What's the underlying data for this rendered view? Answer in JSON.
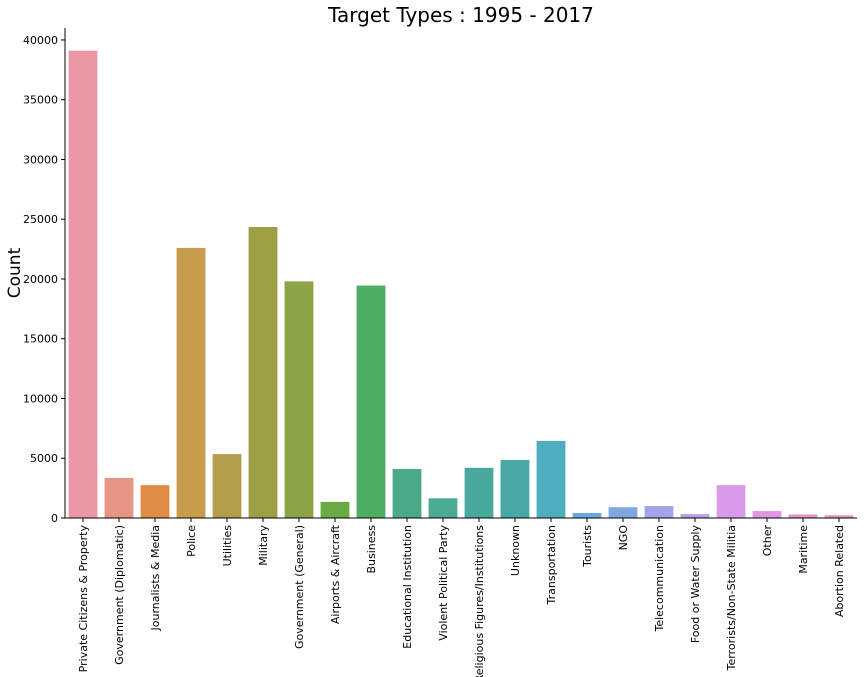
{
  "chart_data": {
    "type": "bar",
    "title": "Target Types : 1995 - 2017",
    "xlabel": "",
    "ylabel": "Count",
    "ylim": [
      0,
      41000
    ],
    "yticks": [
      0,
      5000,
      10000,
      15000,
      20000,
      25000,
      30000,
      35000,
      40000
    ],
    "categories": [
      "Private Citizens & Property",
      "Government (Diplomatic)",
      "Journalists & Media",
      "Police",
      "Utilities",
      "Military",
      "Government (General)",
      "Airports & Aircraft",
      "Business",
      "Educational Institution",
      "Violent Political Party",
      "Religious Figures/Institutions",
      "Unknown",
      "Transportation",
      "Tourists",
      "NGO",
      "Telecommunication",
      "Food or Water Supply",
      "Terrorists/Non-State Militia",
      "Other",
      "Maritime",
      "Abortion Related"
    ],
    "values": [
      39100,
      3350,
      2750,
      22600,
      5350,
      24350,
      19800,
      1350,
      19450,
      4100,
      1650,
      4200,
      4850,
      6450,
      420,
      900,
      1000,
      330,
      2750,
      580,
      300,
      230
    ],
    "colors": [
      "#ea96a3",
      "#e59485",
      "#df8d46",
      "#c79c4c",
      "#b49e4d",
      "#9e9f45",
      "#8ca346",
      "#6aaa42",
      "#4cae62",
      "#4aaa86",
      "#4aaa93",
      "#48a89b",
      "#49a8a5",
      "#4eadbf",
      "#6aa6e0",
      "#7fa6e0",
      "#a4a4ea",
      "#b9a0ea",
      "#d99aea",
      "#e295e2",
      "#e595cf",
      "#e796bf"
    ],
    "grid": false,
    "legend": "none"
  }
}
